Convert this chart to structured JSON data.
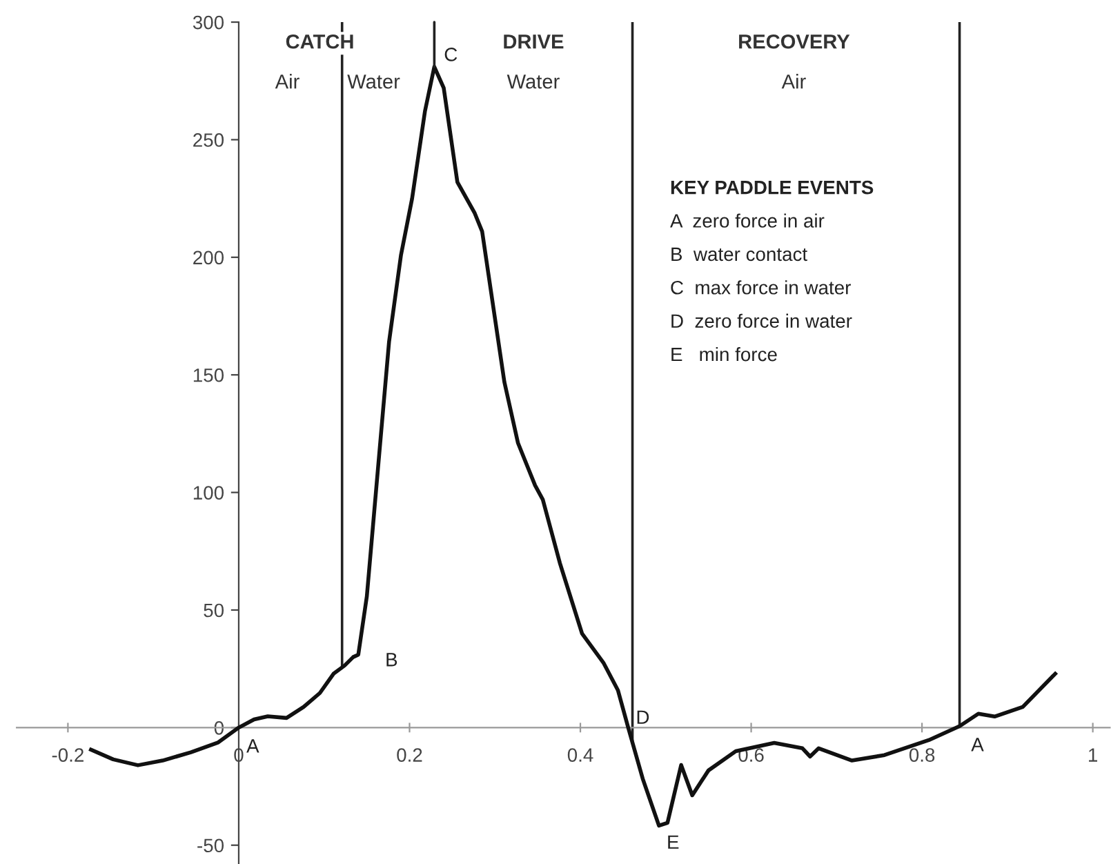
{
  "chart_data": {
    "type": "line",
    "x": [
      -0.173,
      -0.147,
      -0.118,
      -0.089,
      -0.056,
      -0.024,
      0,
      0.018,
      0.034,
      0.056,
      0.076,
      0.095,
      0.111,
      0.124,
      0.134,
      0.14,
      0.15,
      0.163,
      0.176,
      0.19,
      0.203,
      0.218,
      0.229,
      0.24,
      0.256,
      0.276,
      0.285,
      0.311,
      0.327,
      0.347,
      0.356,
      0.376,
      0.402,
      0.427,
      0.444,
      0.456,
      0.473,
      0.492,
      0.502,
      0.518,
      0.531,
      0.55,
      0.582,
      0.627,
      0.66,
      0.669,
      0.679,
      0.718,
      0.756,
      0.808,
      0.844,
      0.866,
      0.885,
      0.918,
      0.956
    ],
    "series": [
      {
        "color": "#111111",
        "values": [
          -9.4,
          -13.5,
          -16,
          -14,
          -10.5,
          -6.3,
          0,
          3.5,
          4.8,
          4.1,
          8.8,
          14.7,
          22.9,
          26.4,
          30,
          31,
          55.8,
          110,
          164,
          201,
          225,
          262,
          281,
          272,
          232,
          219,
          211,
          147,
          121,
          103,
          97,
          70,
          40,
          27.6,
          15.9,
          0,
          -21.7,
          -41.7,
          -40.5,
          -15.9,
          -28.8,
          -18.2,
          -10,
          -6.5,
          -8.8,
          -12.3,
          -8.8,
          -14,
          -11.7,
          -5.3,
          0.6,
          5.9,
          4.7,
          8.8,
          22.9
        ]
      }
    ],
    "xlim": [
      -0.26,
      1.02
    ],
    "ylim": [
      -58,
      300
    ],
    "xticks": [
      -0.2,
      0,
      0.2,
      0.4,
      0.6,
      0.8,
      1
    ],
    "yticks": [
      -50,
      0,
      50,
      100,
      150,
      200,
      250,
      300
    ],
    "ref_lines": [
      {
        "axis": "x",
        "value": 0.121,
        "color": "#222222"
      },
      {
        "axis": "x",
        "value": 0.461,
        "color": "#222222"
      },
      {
        "axis": "x",
        "value": 0.844,
        "color": "#222222"
      }
    ],
    "annotations": [
      {
        "text": "A",
        "x": 0,
        "y": 0
      },
      {
        "text": "B",
        "x": 0.14,
        "y": 31
      },
      {
        "text": "C",
        "x": 0.229,
        "y": 281
      },
      {
        "text": "D",
        "x": 0.456,
        "y": 0
      },
      {
        "text": "E",
        "x": 0.492,
        "y": -41.7
      },
      {
        "text": "A",
        "x": 0.844,
        "y": 0.6
      },
      "CATCH",
      "Air",
      "Water",
      "DRIVE",
      "Water",
      "RECOVERY",
      "Air",
      "KEY PADDLE EVENTS",
      "A  zero force in air",
      "B  water contact",
      "C  max force in water",
      "D  zero force in water",
      "E   min force"
    ],
    "grid": false,
    "legend": false,
    "marker": "none",
    "line_style": "solid"
  }
}
